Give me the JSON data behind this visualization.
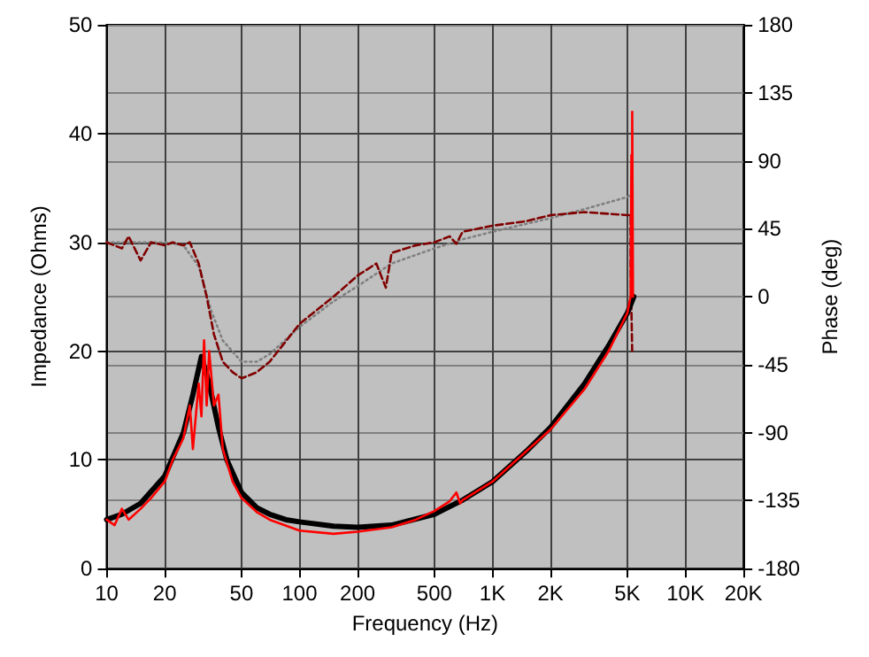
{
  "chart_data": {
    "type": "line",
    "xlabel": "Frequency (Hz)",
    "ylabel": "Impedance (Ohms)",
    "y2label": "Phase (deg)",
    "log": "x",
    "grid": true,
    "xlim": [
      10,
      20000
    ],
    "xticks": [
      10,
      20,
      50,
      100,
      200,
      500,
      {
        "value": 1000,
        "label": "1K"
      },
      {
        "value": 2000,
        "label": "2K"
      },
      {
        "value": 5000,
        "label": "5K"
      },
      {
        "value": 10000,
        "label": "10K"
      },
      {
        "value": 20000,
        "label": "20K"
      }
    ],
    "ylim": [
      0,
      50
    ],
    "yticks": [
      0,
      10,
      20,
      30,
      40,
      50
    ],
    "y2lim": [
      -180,
      180
    ],
    "y2ticks": [
      -180,
      -135,
      -90,
      -45,
      0,
      45,
      90,
      135,
      180
    ],
    "series": [
      {
        "color": "#808080",
        "line_style": "dotted",
        "axis": "y2",
        "x": [
          10,
          15,
          20,
          25,
          30,
          35,
          40,
          50,
          60,
          70,
          100,
          150,
          200,
          300,
          500,
          700,
          1000,
          2000,
          3000,
          5000,
          5300
        ],
        "values": [
          36,
          36,
          36,
          34,
          20,
          -10,
          -29,
          -43,
          -43,
          -38,
          -20,
          -3,
          7,
          22,
          32,
          38,
          43,
          52,
          58,
          66,
          68
        ]
      },
      {
        "color": "#800000",
        "line_style": "dashed",
        "axis": "y2",
        "x": [
          10,
          12,
          13,
          15,
          17,
          20,
          22,
          25,
          27,
          30,
          33,
          36,
          40,
          45,
          50,
          55,
          60,
          70,
          100,
          150,
          200,
          250,
          280,
          300,
          400,
          500,
          600,
          650,
          700,
          1000,
          1500,
          2000,
          3000,
          5000,
          5200,
          5200,
          5300
        ],
        "values": [
          36,
          32,
          40,
          24,
          36,
          34,
          36,
          34,
          36,
          22,
          0,
          -25,
          -43,
          -50,
          -54,
          -52,
          -50,
          -43,
          -18,
          0,
          14,
          22,
          6,
          29,
          34,
          36,
          40,
          35,
          43,
          47,
          50,
          54,
          56,
          54,
          54,
          20,
          -36
        ]
      },
      {
        "color": "#000000",
        "x": [
          10,
          12,
          15,
          20,
          25,
          28,
          31,
          34,
          38,
          42,
          50,
          60,
          70,
          85,
          100,
          150,
          200,
          300,
          500,
          700,
          1000,
          1500,
          2000,
          3000,
          4000,
          5000,
          5400
        ],
        "values": [
          4.5,
          5,
          6,
          8.5,
          12.5,
          16,
          19.5,
          17,
          13,
          10,
          7,
          5.6,
          5,
          4.5,
          4.3,
          3.9,
          3.8,
          4.0,
          5.0,
          6.3,
          8,
          10.8,
          13,
          17,
          20.5,
          23.5,
          25
        ]
      },
      {
        "color": "#ff0000",
        "x": [
          10,
          11,
          12,
          13,
          15,
          17,
          20,
          22,
          25,
          27,
          28,
          30,
          31,
          32,
          33,
          34,
          36,
          38,
          40,
          45,
          50,
          60,
          70,
          100,
          150,
          200,
          300,
          400,
          500,
          600,
          650,
          680,
          700,
          1000,
          2000,
          3000,
          4000,
          5000,
          5200,
          5250,
          5300,
          5300,
          5350
        ],
        "values": [
          4.5,
          4,
          5.5,
          4.5,
          5.5,
          6.5,
          8,
          10,
          12,
          15,
          11,
          17,
          14,
          21,
          15,
          20,
          15,
          16,
          11,
          8,
          6.5,
          5.2,
          4.5,
          3.5,
          3.2,
          3.4,
          3.8,
          4.5,
          5.3,
          6.2,
          7,
          6,
          6.3,
          8,
          12.8,
          16.5,
          20,
          23.5,
          25,
          38,
          30,
          42,
          25
        ]
      }
    ]
  }
}
